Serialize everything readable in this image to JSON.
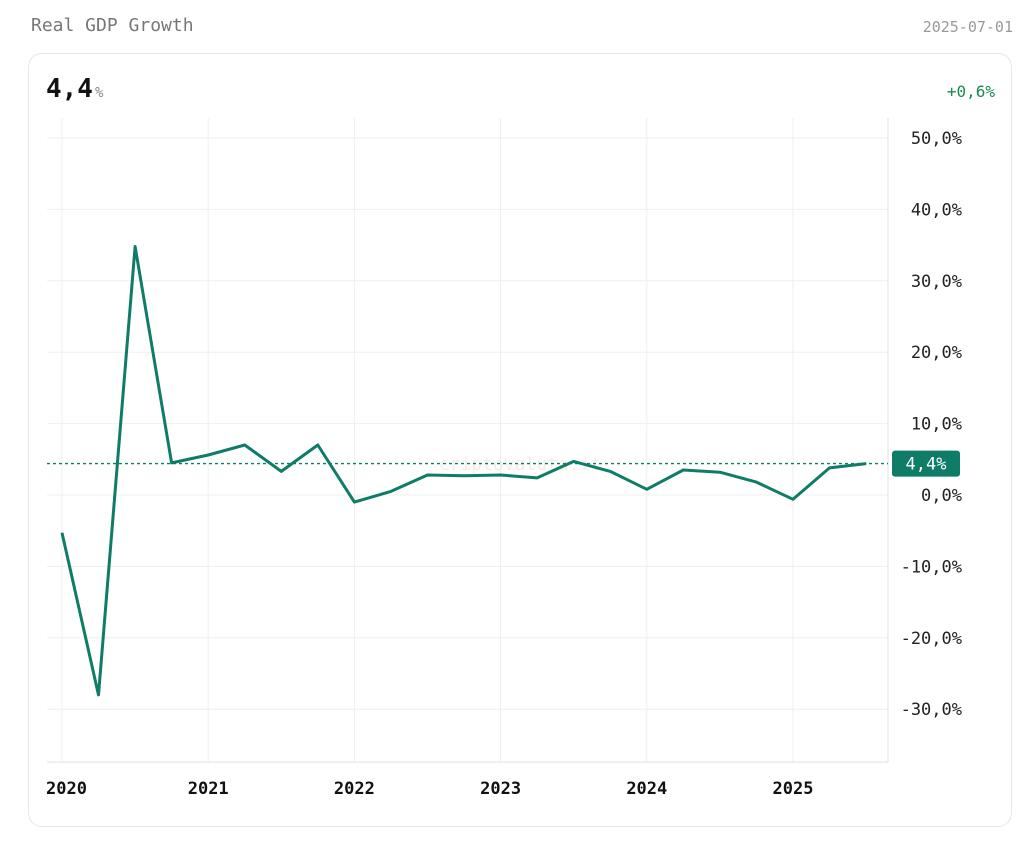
{
  "header": {
    "title": "Real GDP Growth",
    "date": "2025-07-01"
  },
  "summary": {
    "value": "4,4",
    "unit": "%",
    "change": "+0,6%"
  },
  "watermark": "criptovaluta.it",
  "colors": {
    "line": "#0e7c66",
    "change_positive": "#1a8a4f",
    "badge": "#0e7c66"
  },
  "chart_data": {
    "type": "line",
    "title": "Real GDP Growth",
    "x": [
      "2020-01-01",
      "2020-04-01",
      "2020-07-01",
      "2020-10-01",
      "2021-01-01",
      "2021-04-01",
      "2021-07-01",
      "2021-10-01",
      "2022-01-01",
      "2022-04-01",
      "2022-07-01",
      "2022-10-01",
      "2023-01-01",
      "2023-04-01",
      "2023-07-01",
      "2023-10-01",
      "2024-01-01",
      "2024-04-01",
      "2024-07-01",
      "2024-10-01",
      "2025-01-01",
      "2025-04-01",
      "2025-07-01"
    ],
    "values": [
      -5.3,
      -28.0,
      34.8,
      4.5,
      5.6,
      7.0,
      3.3,
      7.0,
      -1.0,
      0.5,
      2.8,
      2.7,
      2.8,
      2.4,
      4.7,
      3.3,
      0.8,
      3.5,
      3.2,
      1.8,
      -0.6,
      3.8,
      4.4
    ],
    "ylim": [
      -37,
      53
    ],
    "yticks": [
      50,
      40,
      30,
      20,
      10,
      0,
      -10,
      -20,
      -30
    ],
    "ytick_labels": [
      "50,0%",
      "40,0%",
      "30,0%",
      "20,0%",
      "10,0%",
      "0,0%",
      "-10,0%",
      "-20,0%",
      "-30,0%"
    ],
    "xtick_labels": [
      "2020",
      "2021",
      "2022",
      "2023",
      "2024",
      "2025"
    ],
    "current_label": "4,4%",
    "current_value": 4.4,
    "grid": true,
    "y_axis_position": "right"
  }
}
